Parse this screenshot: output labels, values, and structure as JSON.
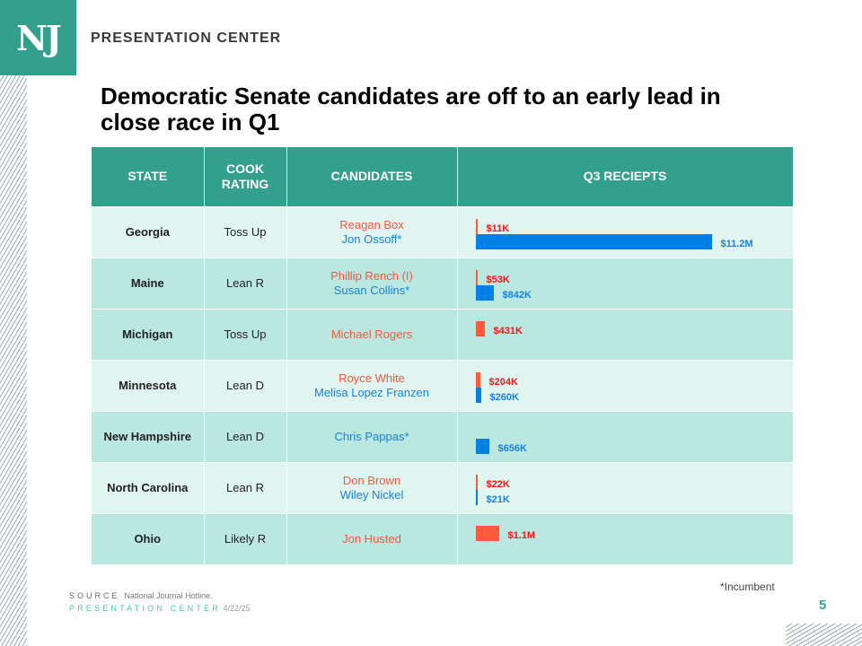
{
  "logo": "NJ",
  "brand": "PRESENTATION CENTER",
  "title": "Democratic Senate candidates are off to an early lead in close race in Q1",
  "headers": [
    "STATE",
    "COOK RATING",
    "CANDIDATES",
    "Q3 RECIEPTS"
  ],
  "colors": {
    "republican": "#fc5a3c",
    "democrat": "#0080e4",
    "header": "#33a08d"
  },
  "rows": [
    {
      "state": "Georgia",
      "rating": "Toss Up",
      "rep": "Reagan Box",
      "dem": "Jon Ossoff*",
      "rep_value": 11,
      "rep_label": "$11K",
      "dem_value": 11200,
      "dem_label": "$11.2M"
    },
    {
      "state": "Maine",
      "rating": "Lean R",
      "rep": "Phillip Rench (I)",
      "dem": "Susan Collins*",
      "rep_value": 53,
      "rep_label": "$53K",
      "dem_value": 842,
      "dem_label": "$842K"
    },
    {
      "state": "Michigan",
      "rating": "Toss Up",
      "rep": "Michael Rogers",
      "dem": null,
      "rep_value": 431,
      "rep_label": "$431K",
      "dem_value": null,
      "dem_label": null
    },
    {
      "state": "Minnesota",
      "rating": "Lean D",
      "rep": "Royce White",
      "dem": "Melisa Lopez Franzen",
      "rep_value": 204,
      "rep_label": "$204K",
      "dem_value": 260,
      "dem_label": "$260K"
    },
    {
      "state": "New Hampshire",
      "rating": "Lean D",
      "rep": null,
      "dem": "Chris Pappas*",
      "rep_value": null,
      "rep_label": null,
      "dem_value": 656,
      "dem_label": "$656K"
    },
    {
      "state": "North Carolina",
      "rating": "Lean R",
      "rep": "Don Brown",
      "dem": "Wiley Nickel",
      "rep_value": 22,
      "rep_label": "$22K",
      "dem_value": 21,
      "dem_label": "$21K"
    },
    {
      "state": "Ohio",
      "rating": "Likely R",
      "rep": "Jon Husted",
      "dem": null,
      "rep_value": 1100,
      "rep_label": "$1.1M",
      "dem_value": null,
      "dem_label": null
    }
  ],
  "footnote": "*Incumbent",
  "source_label": "SOURCE",
  "source": "National Journal Hotline.",
  "footer_brand": "PRESENTATION CENTER",
  "date": "4/22/25",
  "page": "5"
}
